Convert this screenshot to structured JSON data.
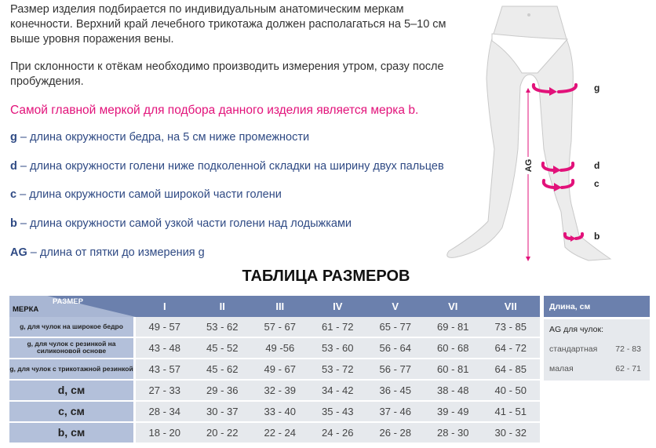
{
  "intro": {
    "p1": "Размер изделия подбирается по индивидуальным анатомическим меркам конечности. Верхний край лечебного трикотажа должен располагаться на 5–10 см выше уровня поражения вены.",
    "p2": "При склонности к отёкам необходимо производить измерения утром, сразу после пробуждения.",
    "highlight": "Самой главной меркой для подбора данного изделия является мерка b."
  },
  "definitions": [
    {
      "key": "g",
      "text": " – длина окружности бедра, на 5 см ниже промежности"
    },
    {
      "key": "d",
      "text": " – длина окружности голени ниже подколенной складки на ширину двух пальцев"
    },
    {
      "key": "c",
      "text": " – длина окружности самой широкой части голени"
    },
    {
      "key": "b",
      "text": " – длина окружности самой узкой части голени над лодыжками"
    },
    {
      "key": "AG",
      "text": " – длина от пятки до измерения g"
    }
  ],
  "diagram": {
    "labels": [
      "g",
      "d",
      "c",
      "b",
      "AG"
    ],
    "accent": "#e2127a"
  },
  "table": {
    "title": "ТАБЛИЦА РАЗМЕРОВ",
    "corner_top": "РАЗМЕР",
    "corner_bottom": "МЕРКА",
    "sizes": [
      "I",
      "II",
      "III",
      "IV",
      "V",
      "VI",
      "VII"
    ],
    "rows": [
      {
        "label": "g, для чулок на широкое бедро",
        "values": [
          "49 - 57",
          "53 - 62",
          "57 - 67",
          "61 - 72",
          "65 - 77",
          "69 - 81",
          "73 - 85"
        ]
      },
      {
        "label": "g, для чулок с  резинкой на силиконовой основе",
        "values": [
          "43 - 48",
          "45 - 52",
          "49 -56",
          "53 - 60",
          "56 - 64",
          "60 - 68",
          "64 - 72"
        ]
      },
      {
        "label": "g, для чулок с трикотажной резинкой",
        "values": [
          "43 - 57",
          "45 - 62",
          "49 - 67",
          "53 - 72",
          "56 - 77",
          "60 - 81",
          "64 - 85"
        ]
      },
      {
        "label": "d, см",
        "values": [
          "27 - 33",
          "29 - 36",
          "32 - 39",
          "34 - 42",
          "36 - 45",
          "38 - 48",
          "40 - 50"
        ]
      },
      {
        "label": "c, см",
        "values": [
          "28 - 34",
          "30 - 37",
          "33 - 40",
          "35 - 43",
          "37 - 46",
          "39 - 49",
          "41 - 51"
        ]
      },
      {
        "label": "b, см",
        "values": [
          "18 - 20",
          "20 - 22",
          "22 - 24",
          "24 - 26",
          "26 - 28",
          "28 - 30",
          "30 - 32"
        ]
      }
    ],
    "header_color": "#6b80ad",
    "label_color": "#b3c0da",
    "cell_color": "#e6e9ed"
  },
  "length": {
    "title": "Длина, см",
    "subtitle": "AG для чулок:",
    "rows": [
      {
        "name": "стандартная",
        "value": "72 - 83"
      },
      {
        "name": "малая",
        "value": "62 - 71"
      }
    ]
  }
}
